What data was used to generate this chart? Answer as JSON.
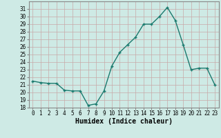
{
  "x": [
    0,
    1,
    2,
    3,
    4,
    5,
    6,
    7,
    8,
    9,
    10,
    11,
    12,
    13,
    14,
    15,
    16,
    17,
    18,
    19,
    20,
    21,
    22,
    23
  ],
  "y": [
    21.5,
    21.3,
    21.2,
    21.2,
    20.3,
    20.2,
    20.2,
    18.3,
    18.5,
    20.2,
    23.5,
    25.3,
    26.3,
    27.3,
    29.0,
    29.0,
    30.0,
    31.2,
    29.5,
    26.3,
    23.0,
    23.2,
    23.2,
    21.0
  ],
  "line_color": "#1a7a6e",
  "marker": "+",
  "marker_size": 3,
  "bg_color": "#ceeae5",
  "grid_color": "#b8d8d4",
  "xlabel": "Humidex (Indice chaleur)",
  "ylim": [
    18,
    32
  ],
  "xlim": [
    -0.5,
    23.5
  ],
  "yticks": [
    18,
    19,
    20,
    21,
    22,
    23,
    24,
    25,
    26,
    27,
    28,
    29,
    30,
    31
  ],
  "xticks": [
    0,
    1,
    2,
    3,
    4,
    5,
    6,
    7,
    8,
    9,
    10,
    11,
    12,
    13,
    14,
    15,
    16,
    17,
    18,
    19,
    20,
    21,
    22,
    23
  ],
  "xtick_labels": [
    "0",
    "1",
    "2",
    "3",
    "4",
    "5",
    "6",
    "7",
    "8",
    "9",
    "10",
    "11",
    "12",
    "13",
    "14",
    "15",
    "16",
    "17",
    "18",
    "19",
    "20",
    "21",
    "22",
    "23"
  ],
  "tick_fontsize": 5.5,
  "xlabel_fontsize": 7,
  "line_width": 1.0,
  "spine_color": "#888888"
}
